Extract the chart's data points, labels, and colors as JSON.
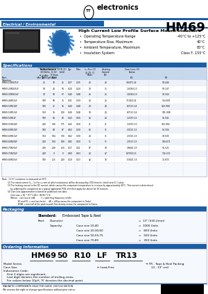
{
  "title_part": "HM69",
  "section1_label": "Electrical / Environmental",
  "header_title": "High Current Low Profile Surface Mount Inductors",
  "bullet_points": [
    [
      "Operating Temperature Range",
      "-40°C to +125°C"
    ],
    [
      "Temperature Rise, Maximum",
      "40°C"
    ],
    [
      "Ambient Temperature, Maximum",
      "80°C"
    ],
    [
      "Insulation System",
      "Class F, 155°C"
    ]
  ],
  "specs_label": "Specifications",
  "table_data": [
    [
      "HM69-10R025LF",
      "25",
      "18",
      "25",
      "0.27",
      "0.35",
      "40",
      "23",
      "3.6475-14",
      "59.444"
    ],
    [
      "HM69-20R025LF",
      "50",
      "28",
      "56",
      "0.20",
      "0.24",
      "70",
      "35",
      "1.0260-13",
      "50.107"
    ],
    [
      "HM69-30R010LF",
      "70",
      "50",
      "67",
      "0.40",
      "0.48",
      "46",
      "25",
      "1.0260-13",
      "70.164"
    ],
    [
      "HM69-40R10LF",
      "100",
      "60",
      "75",
      "0.31",
      "0.39",
      "28",
      "25",
      "7.1040-14",
      "154.891"
    ],
    [
      "HM69-50R10LF",
      "100",
      "72",
      "95",
      "0.40",
      "0.48",
      "29",
      "24",
      "8.7130-14",
      "120.990"
    ],
    [
      "HM69-50R15LF",
      "150",
      "96",
      "120",
      "0.40",
      "0.48",
      "18",
      "24",
      "8.7130-14",
      "191.998"
    ],
    [
      "HM69-50R1LF",
      "100",
      "64",
      "80",
      "0.43",
      "0.56",
      "46",
      "23",
      "1.3370-13",
      "96.541"
    ],
    [
      "HM69-55R20LF",
      "200",
      "140",
      "175",
      "0.43",
      "0.56",
      "21",
      "21",
      "1.3370-13",
      "160.902"
    ],
    [
      "HM69-60R10LF",
      "100",
      "69",
      "87",
      "0.62",
      "0.30",
      "62",
      "31",
      "2.3115-13",
      "52.336"
    ],
    [
      "HM69-60R15LF",
      "150",
      "104",
      "130",
      "0.62",
      "0.30",
      "44",
      "31",
      "2.3315-13",
      "78.503"
    ],
    [
      "HM69-60R20LF",
      "200",
      "164",
      "080",
      "0.82",
      "0.50",
      "31",
      "31",
      "2.3115-13",
      "104.671"
    ],
    [
      "HM69-70R20LF",
      "200",
      "200",
      "250",
      "0.17",
      "0.21",
      "87",
      "70",
      "2.8641-13",
      "95.521"
    ],
    [
      "HM69-75R20LF",
      "200",
      "0",
      "0",
      "0.60",
      "0.63",
      "20",
      "47",
      "8.7030-13",
      "134.203"
    ],
    [
      "HM69-80R20LF",
      "100",
      "215",
      "260",
      "0.10",
      "0.13",
      "42",
      "76",
      "5.3021-13",
      "72.674"
    ]
  ],
  "notes": [
    "Note:  (1) DC resistance is measured at 20°C.",
    "         (2) The rated current (I₂...) is the current at which inductance will be decreased by 30% from its initial (zero DC) value.",
    "         (3) The heating current is the DC current, which causes the component temperature to increase by approximately 40°C. This current is determined",
    "              by soldering the component on a typical application PCB, and then apply the device for 30 minutes.",
    "         (4) Core Loss approximation is based on published core data:",
    "              Core Loss = K1 * (F)^1.68 + (K2·B)^2.6",
    "              Where:   core loss in mW          f = switching frequency in kHz",
    "                          K1 and K2 = core loss factor     dB = d(flux across the component in Tesla)",
    "                          K3dB = one half of the peak to peak flux density across the component in Gauss"
  ],
  "packaging_label": "Packaging",
  "packaging_lines": [
    [
      "Standard:",
      "Embossed Tape & Reel",
      "",
      ""
    ],
    [
      "Reel:",
      "Diameter:",
      "",
      "= 13\" (330.2mm)"
    ],
    [
      "",
      "Capacity:",
      "Case size 10,40",
      "= 1000 Units"
    ],
    [
      "",
      "",
      "Case size 20,30,60",
      "=  800 Units"
    ],
    [
      "",
      "",
      "Case size 50,55,75",
      "=  500 Units"
    ],
    [
      "",
      "",
      "Case size 70,80",
      "=  350 Units"
    ]
  ],
  "ordering_label": "Ordering Information",
  "footer_text": "MAGNETIC COMPONENTS SELECTOR GUIDE  2007/08 EDITION",
  "footer_sub": "We reserve the right to change specifications without prior notice.",
  "blue": "#1B5EA6",
  "light_blue": "#4A90C4",
  "row_even": "#EEF2F8",
  "row_odd": "#FFFFFF",
  "header_row_bg": "#C8D8EC",
  "bg": "#FFFFFF"
}
